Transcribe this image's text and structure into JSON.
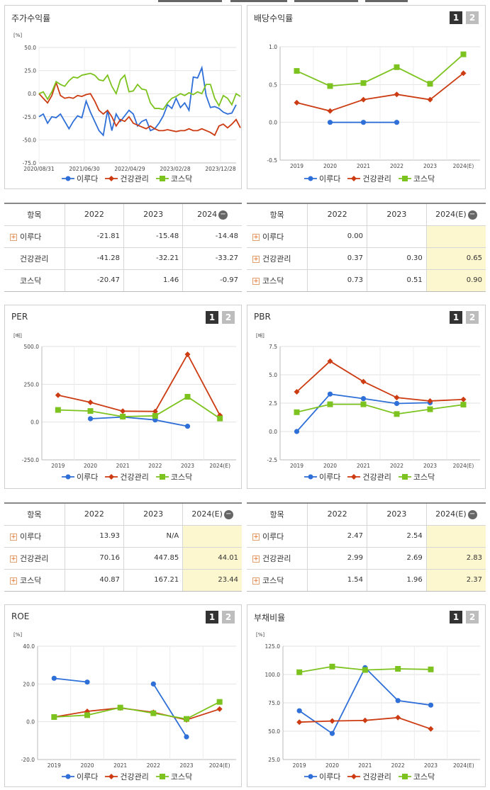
{
  "colors": {
    "idu": "#2f6fd8",
    "health": "#cc3b12",
    "kosdaq": "#7dc31f"
  },
  "legend": [
    "이루다",
    "건강관리",
    "코스닥"
  ],
  "page_buttons": [
    "1",
    "2"
  ],
  "panels": {
    "stock_return": {
      "title": "주가수익률",
      "unit": "[%]"
    },
    "dividend": {
      "title": "배당수익률",
      "unit": ""
    },
    "per": {
      "title": "PER",
      "unit": "[배]"
    },
    "pbr": {
      "title": "PBR",
      "unit": "[배]"
    },
    "roe": {
      "title": "ROE",
      "unit": "[%]"
    },
    "debt": {
      "title": "부채비율",
      "unit": "[%]"
    }
  },
  "tables": {
    "stock_return": {
      "headers": [
        "항목",
        "2022",
        "2023",
        "2024"
      ],
      "rows": [
        {
          "name": "이루다",
          "expand": true,
          "values": [
            "-21.81",
            "-15.48",
            "-14.48"
          ]
        },
        {
          "name": "건강관리",
          "expand": false,
          "values": [
            "-41.28",
            "-32.21",
            "-33.27"
          ]
        },
        {
          "name": "코스닥",
          "expand": false,
          "values": [
            "-20.47",
            "1.46",
            "-0.97"
          ]
        }
      ]
    },
    "dividend": {
      "headers": [
        "항목",
        "2022",
        "2023",
        "2024(E)"
      ],
      "rows": [
        {
          "name": "이루다",
          "expand": true,
          "values": [
            "0.00",
            "",
            ""
          ]
        },
        {
          "name": "건강관리",
          "expand": true,
          "values": [
            "0.37",
            "0.30",
            "0.65"
          ]
        },
        {
          "name": "코스닥",
          "expand": true,
          "values": [
            "0.73",
            "0.51",
            "0.90"
          ]
        }
      ]
    },
    "per": {
      "headers": [
        "항목",
        "2022",
        "2023",
        "2024(E)"
      ],
      "rows": [
        {
          "name": "이루다",
          "expand": true,
          "values": [
            "13.93",
            "N/A",
            ""
          ]
        },
        {
          "name": "건강관리",
          "expand": true,
          "values": [
            "70.16",
            "447.85",
            "44.01"
          ]
        },
        {
          "name": "코스닥",
          "expand": true,
          "values": [
            "40.87",
            "167.21",
            "23.44"
          ]
        }
      ]
    },
    "pbr": {
      "headers": [
        "항목",
        "2022",
        "2023",
        "2024(E)"
      ],
      "rows": [
        {
          "name": "이루다",
          "expand": true,
          "values": [
            "2.47",
            "2.54",
            ""
          ]
        },
        {
          "name": "건강관리",
          "expand": true,
          "values": [
            "2.99",
            "2.69",
            "2.83"
          ]
        },
        {
          "name": "코스닥",
          "expand": true,
          "values": [
            "1.54",
            "1.96",
            "2.37"
          ]
        }
      ]
    }
  },
  "chart_data": [
    {
      "id": "stock_return",
      "type": "line",
      "x_ticks": [
        "2020/08/31",
        "2021/06/30",
        "2022/04/29",
        "2023/02/28",
        "2023/12/28"
      ],
      "y_ticks": [
        "50.0",
        "25.0",
        "0.0",
        "-25.0",
        "-50.0",
        "-75.0"
      ],
      "ylim": [
        -75,
        50
      ],
      "series": [
        {
          "name": "이루다",
          "values": [
            -25,
            -22,
            -32,
            -25,
            -26,
            -22,
            -30,
            -38,
            -30,
            -24,
            -26,
            -8,
            -20,
            -30,
            -40,
            -45,
            -18,
            -40,
            -22,
            -30,
            -24,
            -18,
            -22,
            -35,
            -30,
            -28,
            -40,
            -38,
            -32,
            -24,
            -12,
            -16,
            -5,
            -15,
            -10,
            -18,
            18,
            17,
            28,
            -2,
            -15,
            -14,
            -16,
            -20,
            -22,
            -21,
            -12
          ]
        },
        {
          "name": "건강관리",
          "values": [
            0,
            -5,
            -10,
            -2,
            12,
            -2,
            -5,
            -4,
            -5,
            -2,
            -3,
            -1,
            0,
            -8,
            -18,
            -22,
            -18,
            -25,
            -35,
            -28,
            -30,
            -25,
            -32,
            -34,
            -36,
            -38,
            -35,
            -38,
            -40,
            -40,
            -39,
            -40,
            -41,
            -40,
            -40,
            -38,
            -40,
            -40,
            -38,
            -40,
            -42,
            -45,
            -35,
            -33,
            -37,
            -33,
            -28,
            -37
          ]
        },
        {
          "name": "코스닥",
          "values": [
            0,
            2,
            -6,
            2,
            13,
            10,
            8,
            14,
            18,
            17,
            20,
            21,
            22,
            20,
            15,
            14,
            20,
            8,
            0,
            15,
            20,
            2,
            3,
            10,
            5,
            4,
            -10,
            -16,
            -16,
            -17,
            -10,
            -5,
            -3,
            0,
            -2,
            1,
            -1,
            2,
            0,
            10,
            10,
            -5,
            -13,
            -2,
            -5,
            -12,
            0,
            -3
          ]
        }
      ]
    },
    {
      "id": "dividend",
      "type": "line",
      "categories": [
        "2019",
        "2020",
        "2021",
        "2022",
        "2023",
        "2024(E)"
      ],
      "y_ticks": [
        "1.0",
        "0.5",
        "0.0",
        "-0.5"
      ],
      "ylim": [
        -0.5,
        1.0
      ],
      "series": [
        {
          "name": "이루다",
          "values": [
            null,
            0.0,
            0.0,
            0.0,
            null,
            null
          ]
        },
        {
          "name": "건강관리",
          "values": [
            0.26,
            0.15,
            0.3,
            0.37,
            0.3,
            0.65
          ]
        },
        {
          "name": "코스닥",
          "values": [
            0.68,
            0.48,
            0.52,
            0.73,
            0.51,
            0.9
          ]
        }
      ]
    },
    {
      "id": "per",
      "type": "line",
      "categories": [
        "2019",
        "2020",
        "2021",
        "2022",
        "2023",
        "2024(E)"
      ],
      "y_ticks": [
        "500.0",
        "250.0",
        "0.0",
        "-250.0"
      ],
      "ylim": [
        -250,
        500
      ],
      "series": [
        {
          "name": "이루다",
          "values": [
            null,
            22,
            33,
            13.93,
            -28,
            null
          ]
        },
        {
          "name": "건강관리",
          "values": [
            178,
            130,
            72,
            70.16,
            447.85,
            44.01
          ]
        },
        {
          "name": "코스닥",
          "values": [
            80,
            73,
            36,
            40.87,
            167.21,
            23.44
          ]
        }
      ]
    },
    {
      "id": "pbr",
      "type": "line",
      "categories": [
        "2019",
        "2020",
        "2021",
        "2022",
        "2023",
        "2024(E)"
      ],
      "y_ticks": [
        "7.5",
        "5.0",
        "2.5",
        "0.0",
        "-2.5"
      ],
      "ylim": [
        -2.5,
        7.5
      ],
      "series": [
        {
          "name": "이루다",
          "values": [
            0.0,
            3.3,
            2.9,
            2.47,
            2.54,
            null
          ]
        },
        {
          "name": "건강관리",
          "values": [
            3.5,
            6.2,
            4.4,
            2.99,
            2.69,
            2.83
          ]
        },
        {
          "name": "코스닥",
          "values": [
            1.7,
            2.4,
            2.4,
            1.54,
            1.96,
            2.37
          ]
        }
      ]
    },
    {
      "id": "roe",
      "type": "line",
      "categories": [
        "2019",
        "2020",
        "2021",
        "2022",
        "2023",
        "2024(E)"
      ],
      "y_ticks": [
        "40.0",
        "20.0",
        "0.0",
        "-20.0"
      ],
      "ylim": [
        -20,
        40
      ],
      "series": [
        {
          "name": "이루다",
          "values": [
            23,
            21,
            null,
            20,
            -8,
            null
          ]
        },
        {
          "name": "건강관리",
          "values": [
            2.5,
            5.5,
            7.3,
            5,
            1,
            6.7
          ]
        },
        {
          "name": "코스닥",
          "values": [
            2.5,
            3.5,
            7.5,
            4.5,
            1.5,
            10.5
          ]
        }
      ]
    },
    {
      "id": "debt",
      "type": "line",
      "categories": [
        "2019",
        "2020",
        "2021",
        "2022",
        "2023",
        "2024(E)"
      ],
      "y_ticks": [
        "125.0",
        "100.0",
        "75.0",
        "50.0",
        "25.0"
      ],
      "ylim": [
        25,
        125
      ],
      "series": [
        {
          "name": "이루다",
          "values": [
            68,
            48,
            106,
            77,
            73,
            null
          ]
        },
        {
          "name": "건강관리",
          "values": [
            58,
            59,
            59.5,
            62,
            52,
            null
          ]
        },
        {
          "name": "코스닥",
          "values": [
            102,
            107,
            104,
            105,
            104.5,
            null
          ]
        }
      ]
    }
  ]
}
